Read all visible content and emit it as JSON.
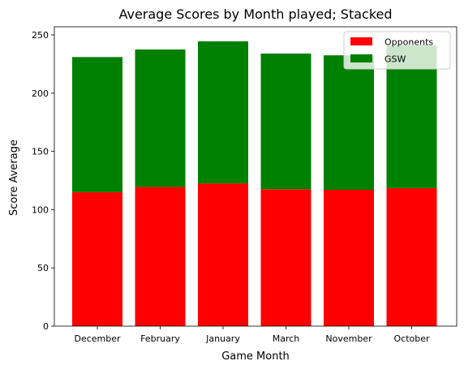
{
  "chart_data": {
    "type": "bar",
    "stacked": true,
    "title": "Average Scores by Month played; Stacked",
    "xlabel": "Game Month",
    "ylabel": "Score Average",
    "categories": [
      "December",
      "February",
      "January",
      "March",
      "November",
      "October"
    ],
    "series": [
      {
        "name": "Opponents",
        "color": "#ff0000",
        "values": [
          115,
          119.5,
          122.5,
          117.5,
          117,
          118.5
        ]
      },
      {
        "name": "GSW",
        "color": "#008000",
        "values": [
          116,
          118,
          122,
          116.5,
          115.5,
          122.5
        ]
      }
    ],
    "ylim": [
      0,
      257
    ],
    "yticks": [
      0,
      50,
      100,
      150,
      200,
      250
    ],
    "grid": false,
    "legend_position": "top-right"
  }
}
